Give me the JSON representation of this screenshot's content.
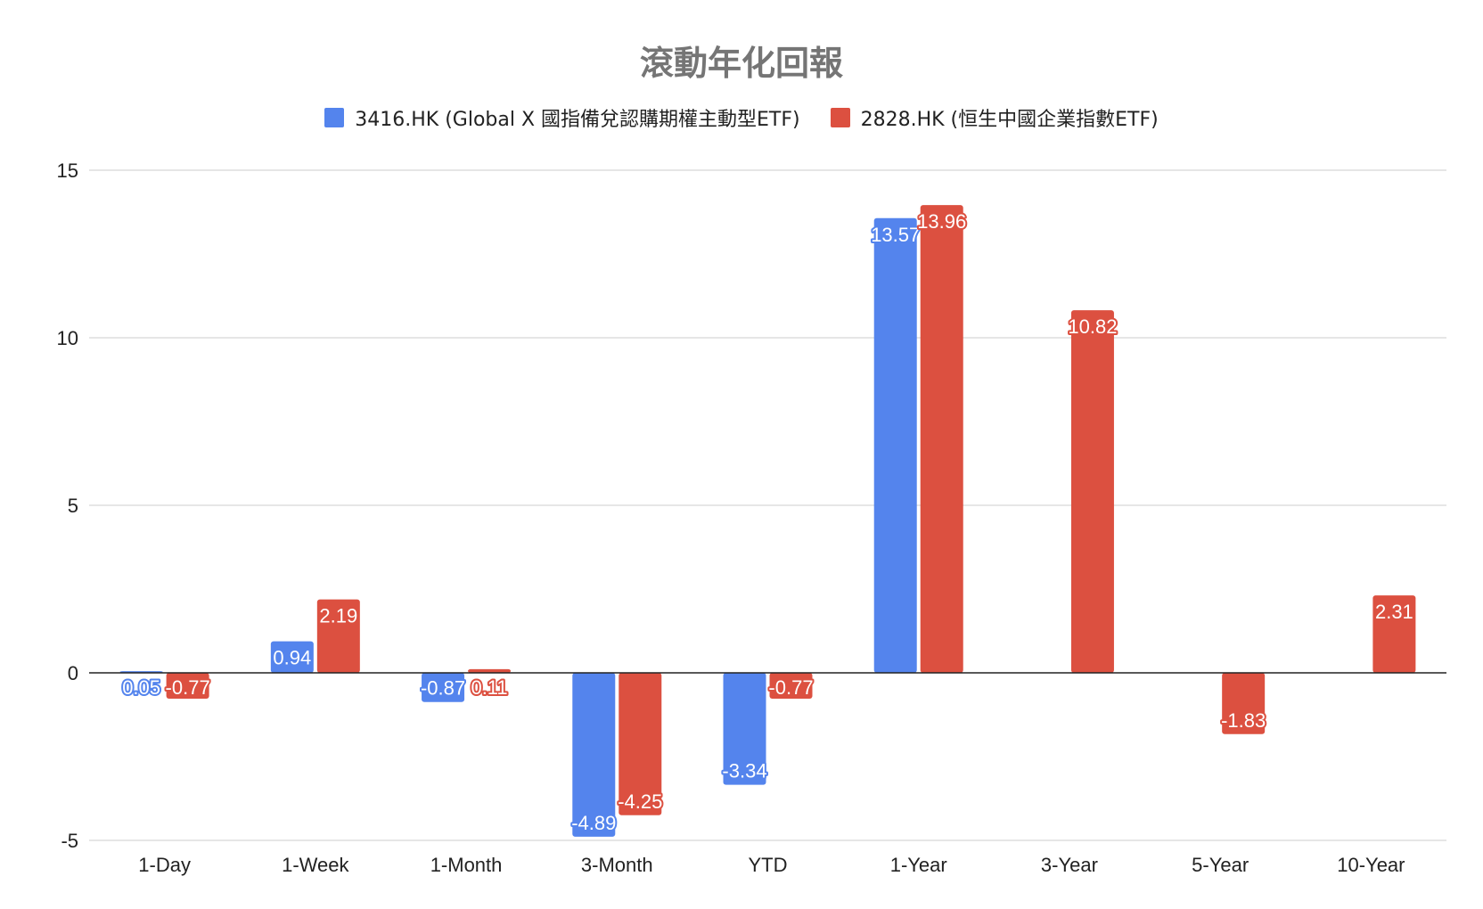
{
  "chart_data": {
    "type": "bar",
    "title": "滾動年化回報",
    "categories": [
      "1-Day",
      "1-Week",
      "1-Month",
      "3-Month",
      "YTD",
      "1-Year",
      "3-Year",
      "5-Year",
      "10-Year"
    ],
    "series": [
      {
        "name": "3416.HK (Global X 國指備兌認購期權主動型ETF)",
        "color": "#5484ed",
        "values": [
          0.05,
          0.94,
          -0.87,
          -4.89,
          -3.34,
          13.57,
          null,
          null,
          null
        ]
      },
      {
        "name": "2828.HK (恒生中國企業指數ETF)",
        "color": "#dc5040",
        "values": [
          -0.77,
          2.19,
          0.11,
          -4.25,
          -0.77,
          13.96,
          10.82,
          -1.83,
          2.31
        ]
      }
    ],
    "ylim": [
      -5,
      15
    ],
    "yticks": [
      "15",
      "10",
      "5",
      "0",
      "-5"
    ],
    "grid": true,
    "legend_position": "top"
  }
}
